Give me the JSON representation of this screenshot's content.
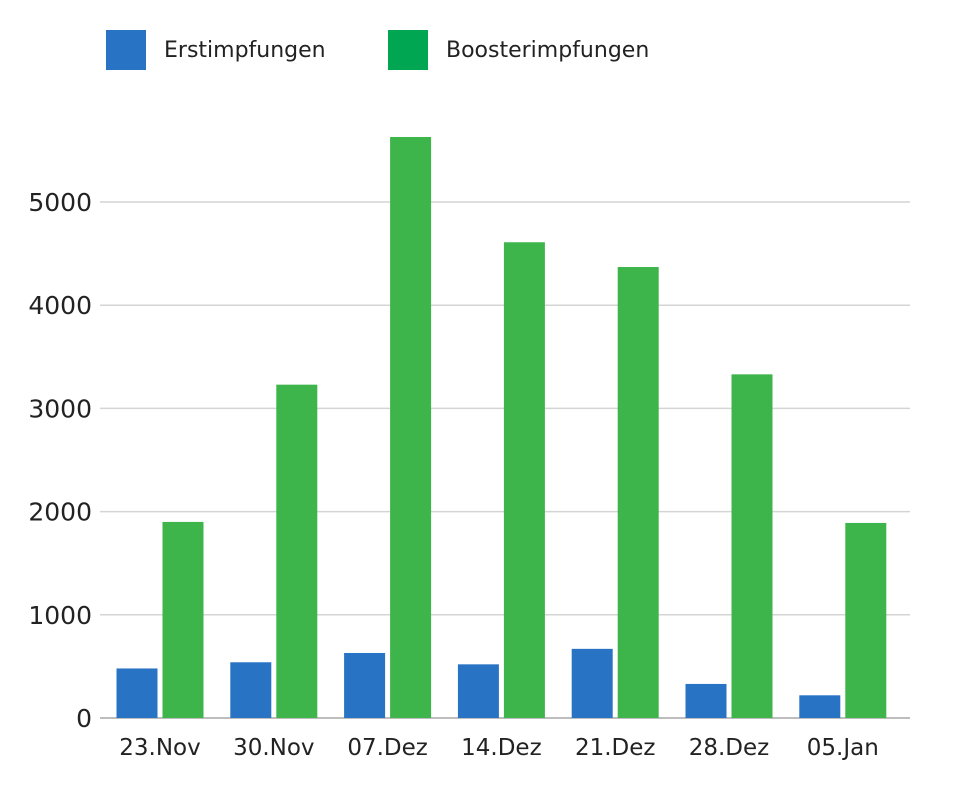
{
  "chart_data": {
    "type": "bar",
    "categories": [
      "23.Nov",
      "30.Nov",
      "07.Dez",
      "14.Dez",
      "21.Dez",
      "28.Dez",
      "05.Jan"
    ],
    "series": [
      {
        "name": "Erstimpfungen",
        "color": "#2873c4",
        "values": [
          480,
          540,
          630,
          520,
          670,
          330,
          220
        ]
      },
      {
        "name": "Boosterimpfungen",
        "color": "#3db54a",
        "values": [
          1900,
          3230,
          5630,
          4610,
          4370,
          3330,
          1890
        ]
      }
    ],
    "ylim": [
      0,
      5700
    ],
    "yticks": [
      0,
      1000,
      2000,
      3000,
      4000,
      5000
    ],
    "grid": true,
    "legend_position": "top-left",
    "title": "",
    "xlabel": "",
    "ylabel": ""
  }
}
